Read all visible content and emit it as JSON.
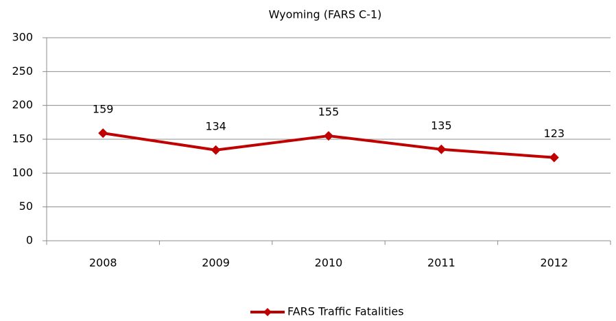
{
  "chart_data": {
    "type": "line",
    "title": "Wyoming (FARS C-1)",
    "categories": [
      "2008",
      "2009",
      "2010",
      "2011",
      "2012"
    ],
    "series": [
      {
        "name": "FARS Traffic Fatalities",
        "color": "#c00000",
        "values": [
          159,
          134,
          155,
          135,
          123
        ]
      }
    ],
    "ylim": [
      0,
      300
    ],
    "yticks": [
      0,
      50,
      100,
      150,
      200,
      250,
      300
    ],
    "grid": true,
    "legend": "bottom"
  }
}
